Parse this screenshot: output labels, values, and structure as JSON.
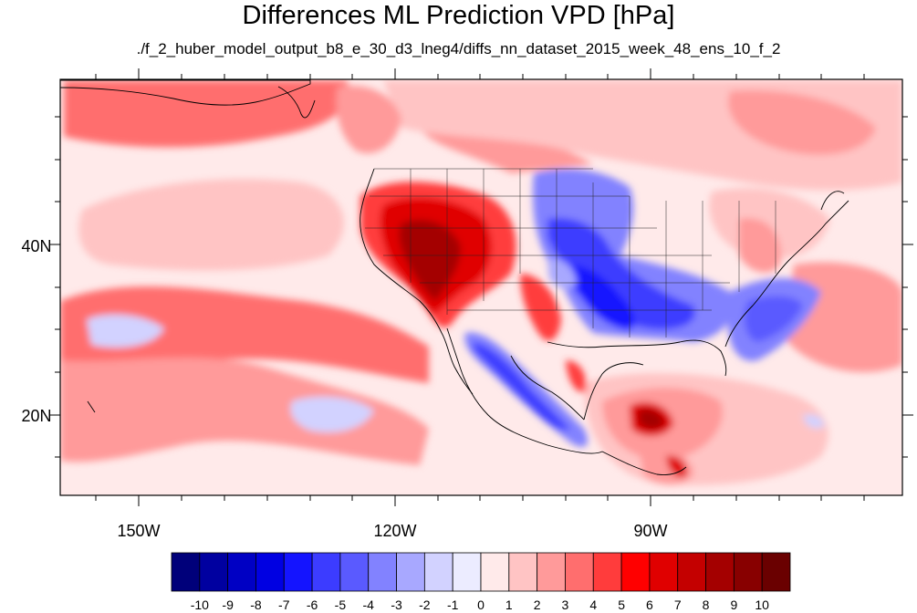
{
  "title": "Differences ML Prediction VPD [hPa]",
  "subtitle": "./f_2_huber_model_output_b8_e_30_d3_lneg4/diffs_nn_dataset_2015_week_48_ens_10_f_2",
  "axes": {
    "lat_labels": [
      "40N",
      "20N"
    ],
    "lon_labels": [
      "150W",
      "120W",
      "90W"
    ]
  },
  "colorbar": {
    "labels": [
      "-10",
      "-9",
      "-8",
      "-7",
      "-6",
      "-5",
      "-4",
      "-3",
      "-2",
      "-1",
      "0",
      "1",
      "2",
      "3",
      "4",
      "5",
      "6",
      "7",
      "8",
      "9",
      "10"
    ],
    "colors": [
      "#00007a",
      "#0000a0",
      "#0000c4",
      "#0000e2",
      "#1414ff",
      "#3c3cff",
      "#5a5aff",
      "#8282ff",
      "#a8a8ff",
      "#d2d2ff",
      "#ececff",
      "#ffeaea",
      "#ffc4c4",
      "#ff9a9a",
      "#ff6e6e",
      "#ff3c3c",
      "#ff0000",
      "#e00000",
      "#c40000",
      "#a40000",
      "#880000",
      "#6a0000"
    ]
  },
  "map_features": {
    "warm_anomalies": [
      "Southwest US",
      "Pacific Northwest coast",
      "Gulf of Mexico / Yucatan",
      "Northeast US",
      "Eastern Canada",
      "Central Pacific"
    ],
    "cool_anomalies": [
      "Central and Southeast US",
      "Western Mexico / Gulf of California",
      "Western Atlantic off Florida",
      "Tropical Pacific near Hawaii",
      "Subtropical Pacific"
    ]
  },
  "chart_data": {
    "type": "heatmap",
    "title": "Differences ML Prediction VPD [hPa]",
    "subtitle": "./f_2_huber_model_output_b8_e_30_d3_lneg4/diffs_nn_dataset_2015_week_48_ens_10_f_2",
    "x_ticks": [
      "150W",
      "120W",
      "90W"
    ],
    "y_ticks": [
      "40N",
      "20N"
    ],
    "value_range": [
      -10,
      10
    ],
    "levels": [
      -10,
      -9,
      -8,
      -7,
      -6,
      -5,
      -4,
      -3,
      -2,
      -1,
      0,
      1,
      2,
      3,
      4,
      5,
      6,
      7,
      8,
      9,
      10
    ]
  }
}
